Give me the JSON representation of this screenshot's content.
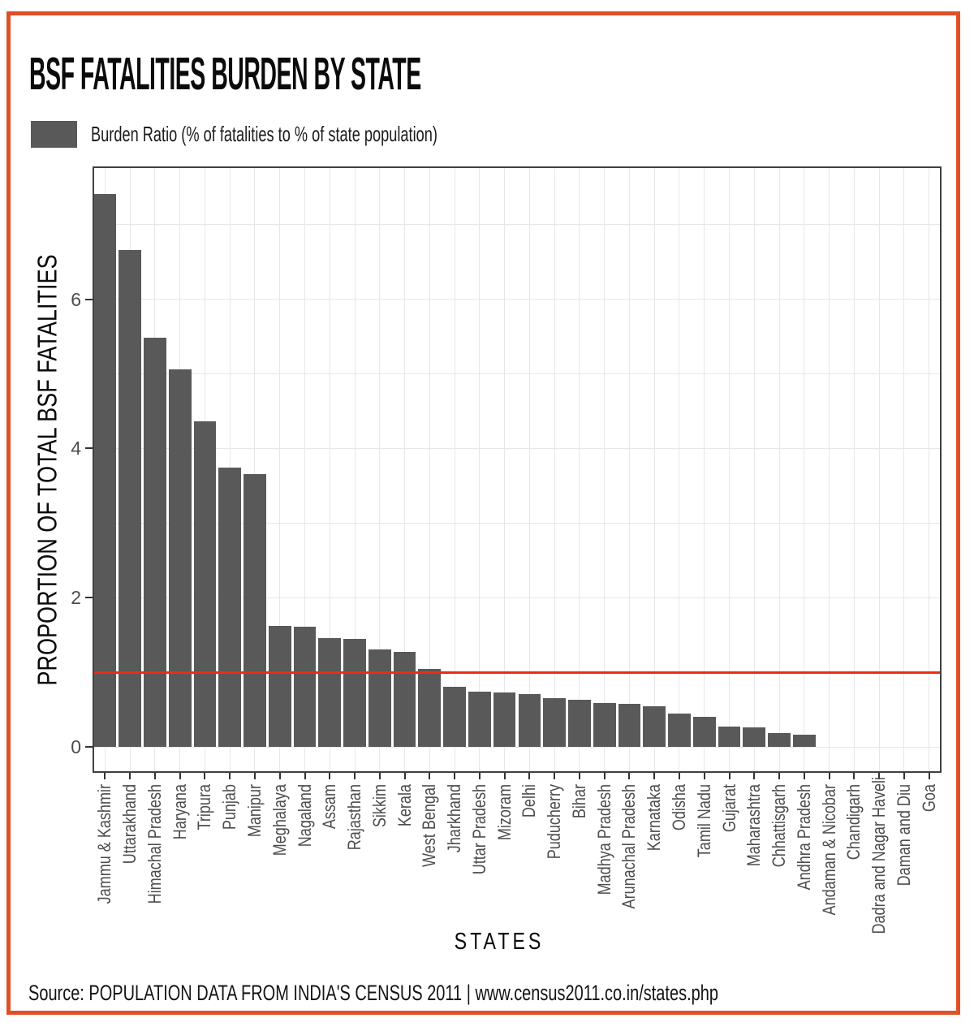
{
  "header": {
    "title": "BSF FATALITIES BURDEN BY STATE"
  },
  "legend": {
    "label": "Burden Ratio (% of fatalities to % of state population)",
    "swatch_color": "#595959"
  },
  "footer": {
    "source": "Source: POPULATION DATA FROM INDIA'S CENSUS 2011 | www.census2011.co.in/states.php"
  },
  "colors": {
    "bar": "#595959",
    "reference_line": "#ee2b16",
    "frame": "#e14f26",
    "panel_border": "#404040",
    "grid": "#e7e7e7",
    "tick": "#333333",
    "tick_label": "#4d4d4d"
  },
  "chart_data": {
    "type": "bar",
    "title": "BSF FATALITIES BURDEN BY STATE",
    "xlabel": "STATES",
    "ylabel": "PROPORTION OF TOTAL BSF FATALITIES",
    "legend_entries": [
      "Burden Ratio (% of fatalities to % of state population)"
    ],
    "legend_position": "top-left above plot",
    "grid": "light gray; horizontal every 1 unit (major at 0,2,4,6), vertical at each category",
    "ylim": [
      0,
      7.78
    ],
    "y_ticks": [
      0,
      2,
      4,
      6
    ],
    "reference_line": {
      "y": 1.0,
      "color": "#ee2b16"
    },
    "categories": [
      "Jammu & Kashmir",
      "Uttarakhand",
      "Himachal Pradesh",
      "Haryana",
      "Tripura",
      "Punjab",
      "Manipur",
      "Meghalaya",
      "Nagaland",
      "Assam",
      "Rajasthan",
      "Sikkim",
      "Kerala",
      "West Bengal",
      "Jharkhand",
      "Uttar Pradesh",
      "Mizoram",
      "Delhi",
      "Puducherry",
      "Bihar",
      "Madhya Pradesh",
      "Arunachal Pradesh",
      "Karnataka",
      "Odisha",
      "Tamil Nadu",
      "Gujarat",
      "Maharashtra",
      "Chhattisgarh",
      "Andhra Pradesh",
      "Andaman & Nicobar",
      "Chandigarh",
      "Dadra and Nagar Haveli",
      "Daman and Diu",
      "Goa"
    ],
    "values": [
      7.41,
      6.66,
      5.48,
      5.06,
      4.36,
      3.74,
      3.66,
      1.62,
      1.61,
      1.46,
      1.45,
      1.31,
      1.27,
      1.04,
      0.8,
      0.74,
      0.73,
      0.71,
      0.65,
      0.63,
      0.59,
      0.58,
      0.54,
      0.45,
      0.4,
      0.27,
      0.26,
      0.19,
      0.16,
      0,
      0,
      0,
      0,
      0
    ]
  }
}
